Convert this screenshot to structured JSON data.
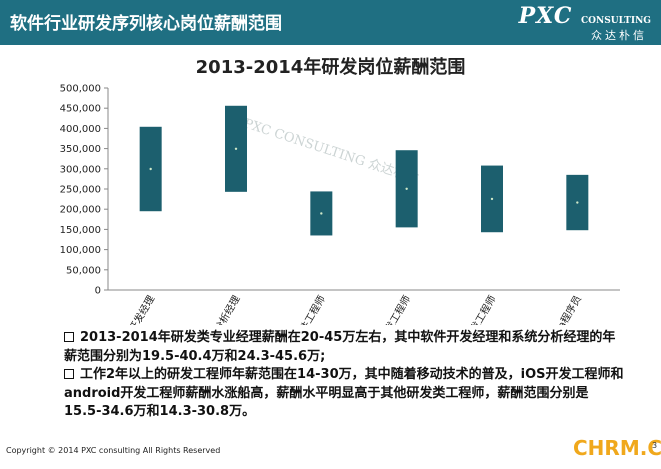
{
  "header": {
    "title": "软件行业研发序列核心岗位薪酬范围",
    "logo": "PXC CONSULTING",
    "logo_sub": "众达朴信"
  },
  "chart_data": {
    "type": "bar",
    "title": "2013-2014年研发岗位薪酬范围",
    "categories": [
      "软件开发经理",
      "系统分析经理",
      "应用软件工程师",
      "iOS开发工程师",
      "android开发工程师",
      "高级java程序员"
    ],
    "series": [
      {
        "low": [
          195000,
          243000,
          135000,
          155000,
          143000,
          148000
        ],
        "high": [
          404000,
          456000,
          244000,
          346000,
          308000,
          285000
        ],
        "mid": [
          299500,
          349500,
          189500,
          250500,
          225500,
          216500
        ]
      }
    ],
    "ylim": [
      0,
      500000
    ],
    "yticks": [
      "0",
      "50,000",
      "100,000",
      "150,000",
      "200,000",
      "250,000",
      "300,000",
      "350,000",
      "400,000",
      "450,000",
      "500,000"
    ],
    "grid": false,
    "bar_color": "#1c5f6e",
    "watermark": "PXC CONSULTING 众达朴信"
  },
  "bullets": [
    "2013-2014年研发类专业经理薪酬在20-45万左右，其中软件开发经理和系统分析经理的年薪范围分别为19.5-40.4万和24.3-45.6万;",
    "工作2年以上的研发工程师年薪范围在14-30万，其中随着移动技术的普及，iOS开发工程师和android开发工程师薪酬水涨船高，薪酬水平明显高于其他研发类工程师，薪酬范围分别是15.5-34.6万和14.3-30.8万。"
  ],
  "footer": {
    "copyright": "Copyright © 2014  PXC consulting All Rights Reserved",
    "watermark": "CHRM.CN",
    "page": "3"
  },
  "colors": {
    "header": "#1f6f82",
    "bar": "#1c5f6e",
    "watermark": "#f0a81c"
  }
}
